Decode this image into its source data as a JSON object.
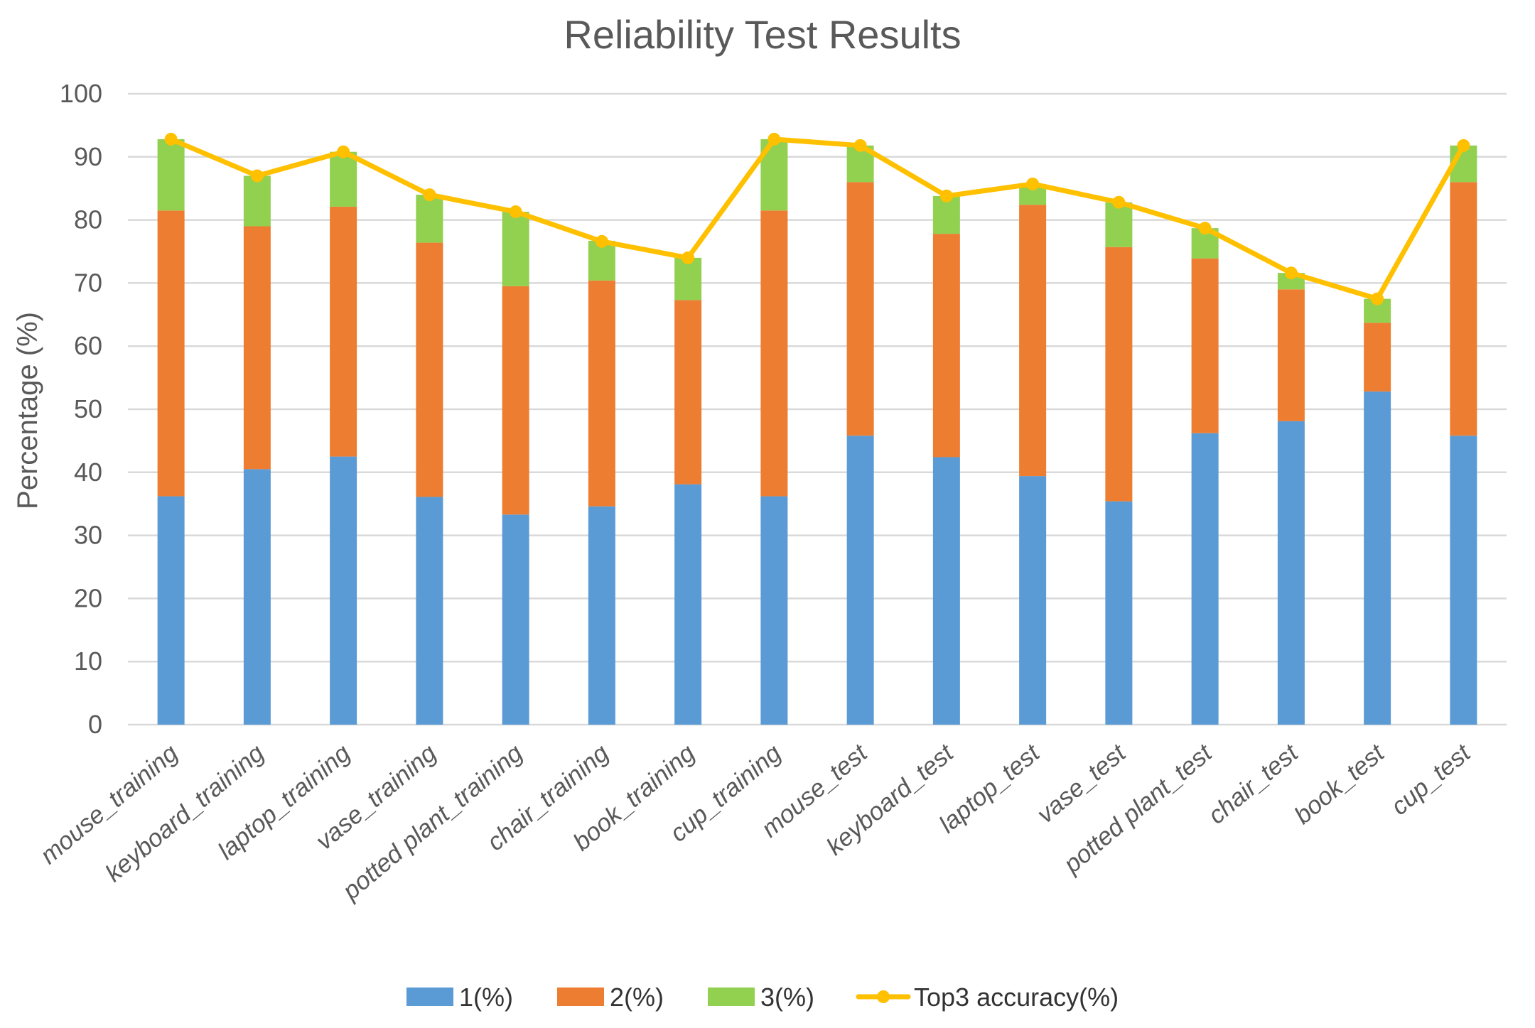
{
  "chart_data": {
    "type": "bar",
    "stacked": true,
    "title": "Reliability Test Results",
    "xlabel": "",
    "ylabel": "Percentage (%)",
    "ylim": [
      0,
      100
    ],
    "yticks": [
      0,
      10,
      20,
      30,
      40,
      50,
      60,
      70,
      80,
      90,
      100
    ],
    "grid": true,
    "legend_position": "bottom",
    "categories": [
      "mouse_training",
      "keyboard_training",
      "laptop_training",
      "vase_training",
      "potted plant_training",
      "chair_training",
      "book_training",
      "cup_training",
      "mouse_test",
      "keyboard_test",
      "laptop_test",
      "vase_test",
      "potted plant_test",
      "chair_test",
      "book_test",
      "cup_test"
    ],
    "series": [
      {
        "name": "1(%)",
        "type": "bar",
        "color": "#5b9bd5",
        "values": [
          36.2,
          40.5,
          42.5,
          36.1,
          33.3,
          34.6,
          38.1,
          36.2,
          45.8,
          42.4,
          39.4,
          35.4,
          46.2,
          48.1,
          52.8,
          45.8
        ]
      },
      {
        "name": "2(%)",
        "type": "bar",
        "color": "#ed7d31",
        "values": [
          45.3,
          38.5,
          39.6,
          40.3,
          36.2,
          35.8,
          29.2,
          45.3,
          40.2,
          35.4,
          43.0,
          40.3,
          27.7,
          20.9,
          10.9,
          40.2
        ]
      },
      {
        "name": "3(%)",
        "type": "bar",
        "color": "#92d050",
        "values": [
          11.3,
          8.0,
          8.7,
          7.6,
          11.8,
          6.3,
          6.7,
          11.3,
          5.8,
          6.0,
          3.3,
          7.1,
          4.8,
          2.6,
          3.8,
          5.8
        ]
      },
      {
        "name": "Top3 accuracy(%)",
        "type": "line",
        "color": "#ffc000",
        "values": [
          92.8,
          87.0,
          90.8,
          84.0,
          81.3,
          76.6,
          74.0,
          92.8,
          91.8,
          83.8,
          85.7,
          82.8,
          78.7,
          71.6,
          67.5,
          91.8
        ]
      }
    ]
  }
}
